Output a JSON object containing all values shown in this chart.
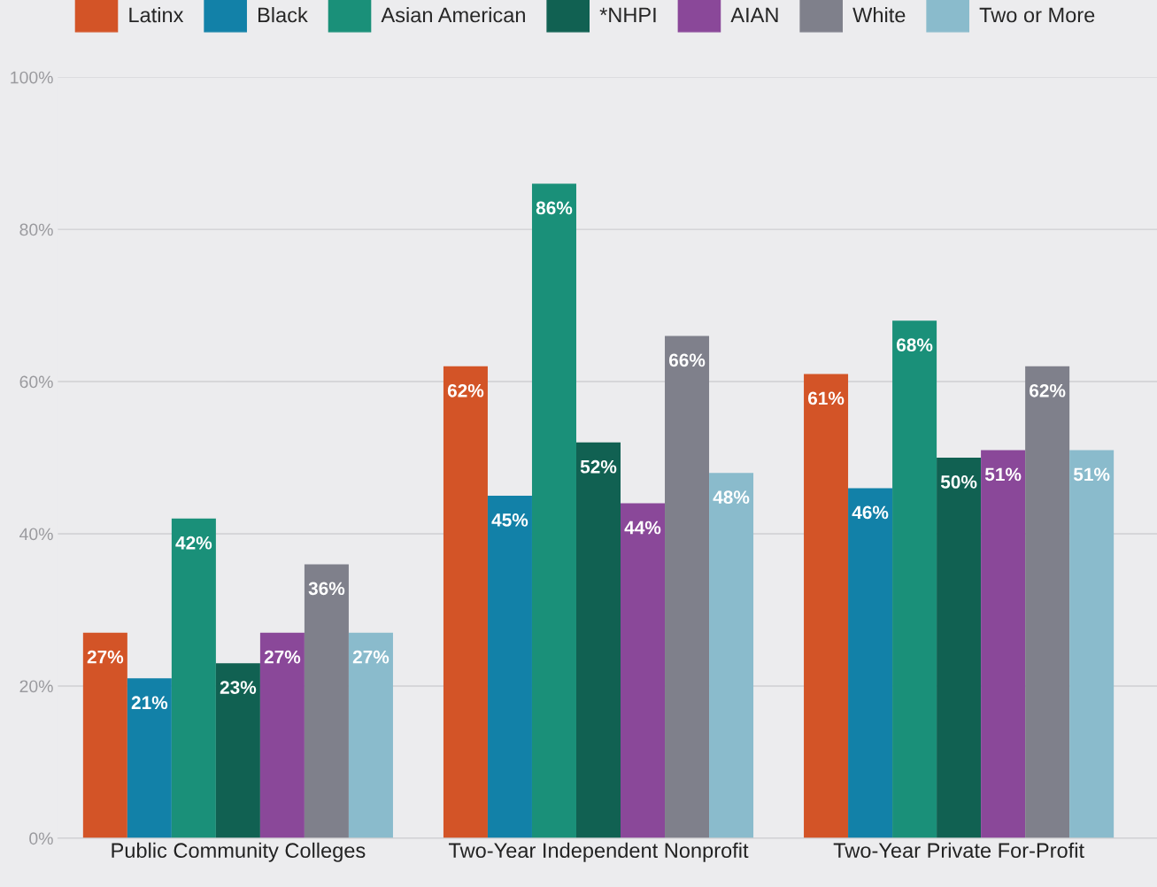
{
  "chart_data": {
    "type": "bar",
    "categories": [
      "Public Community Colleges",
      "Two-Year Independent Nonprofit",
      "Two-Year Private For-Profit"
    ],
    "series": [
      {
        "name": "Latinx",
        "color": "#d35427",
        "values": [
          27,
          62,
          61
        ],
        "value_labels": [
          "27%",
          "62%",
          "61%"
        ]
      },
      {
        "name": "Black",
        "color": "#1281a8",
        "values": [
          21,
          45,
          46
        ],
        "value_labels": [
          "21%",
          "45%",
          "46%"
        ]
      },
      {
        "name": "Asian American",
        "color": "#1a9079",
        "values": [
          42,
          86,
          68
        ],
        "value_labels": [
          "42%",
          "86%",
          "68%"
        ]
      },
      {
        "name": "*NHPI",
        "color": "#116152",
        "values": [
          23,
          52,
          50
        ],
        "value_labels": [
          "23%",
          "52%",
          "50%"
        ]
      },
      {
        "name": "AIAN",
        "color": "#8a4899",
        "values": [
          27,
          44,
          51
        ],
        "value_labels": [
          "27%",
          "44%",
          "51%"
        ]
      },
      {
        "name": "White",
        "color": "#7f808b",
        "values": [
          36,
          66,
          62
        ],
        "value_labels": [
          "36%",
          "66%",
          "62%"
        ]
      },
      {
        "name": "Two or More",
        "color": "#8abbcc",
        "values": [
          27,
          48,
          51
        ],
        "value_labels": [
          "27%",
          "48%",
          "51%"
        ]
      }
    ],
    "ylim": [
      0,
      100
    ],
    "yticks": [
      {
        "value": 0,
        "label": "0%"
      },
      {
        "value": 20,
        "label": "20%"
      },
      {
        "value": 40,
        "label": "40%"
      },
      {
        "value": 60,
        "label": "60%"
      },
      {
        "value": 80,
        "label": "80%"
      },
      {
        "value": 100,
        "label": "100%"
      }
    ],
    "grid": "y",
    "legend": "top"
  }
}
